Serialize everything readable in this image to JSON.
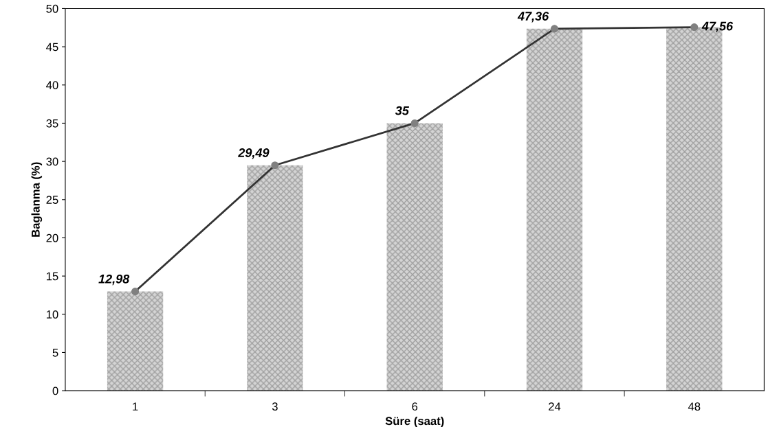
{
  "chart_data": {
    "type": "bar",
    "xlabel": "Süre (saat)",
    "ylabel": "Baglanma (%)",
    "categories": [
      "1",
      "3",
      "6",
      "24",
      "48"
    ],
    "series": [
      {
        "color": "#d4d4d4",
        "values": [
          12.98,
          29.49,
          35,
          47.36,
          47.56
        ]
      },
      {
        "type": "line",
        "color": "#333333",
        "marker": "circle",
        "values": [
          12.98,
          29.49,
          35,
          47.36,
          47.56
        ],
        "value_labels": [
          "12,98",
          "29,49",
          "35",
          "47,36",
          "47,56"
        ]
      }
    ],
    "ylim": [
      0,
      50
    ],
    "yticks": [
      0,
      5,
      10,
      15,
      20,
      25,
      30,
      35,
      40,
      45,
      50
    ],
    "grid": false,
    "legend": false
  }
}
